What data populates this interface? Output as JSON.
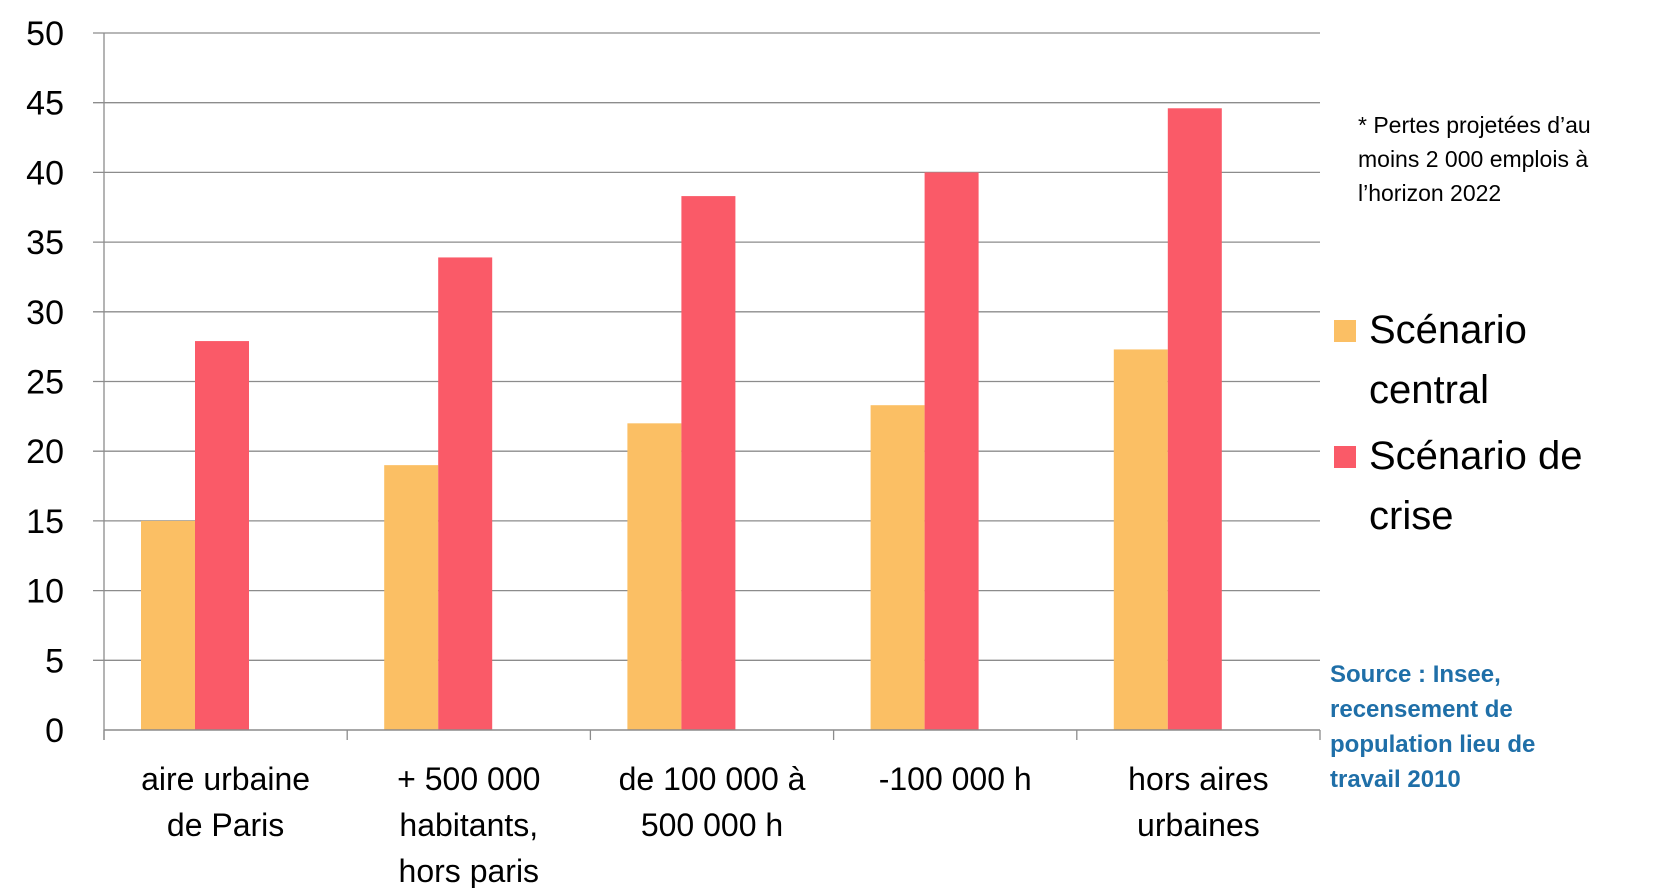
{
  "chart_data": {
    "type": "bar",
    "categories": [
      [
        "aire urbaine",
        "de Paris"
      ],
      [
        "+  500 000",
        "habitants,",
        "hors paris"
      ],
      [
        "de 100 000 à",
        "500 000 h"
      ],
      [
        "-100 000 h"
      ],
      [
        "hors aires",
        "urbaines"
      ]
    ],
    "series": [
      {
        "name": "Scénario central",
        "name_lines": [
          "Scénario",
          "central"
        ],
        "color": "#fbbf64",
        "values": [
          15,
          19,
          22,
          23.3,
          27.3
        ]
      },
      {
        "name": "Scénario de crise",
        "name_lines": [
          "Scénario de",
          "crise"
        ],
        "color": "#fa5a68",
        "values": [
          27.9,
          33.9,
          38.3,
          40,
          44.6
        ]
      }
    ],
    "ylim": [
      0,
      50
    ],
    "yticks": [
      "0",
      "5",
      "10",
      "15",
      "20",
      "25",
      "30",
      "35",
      "40",
      "45",
      "50"
    ],
    "grid": true,
    "legend_position": "right",
    "title": "",
    "xlabel": "",
    "ylabel": ""
  },
  "note": [
    "* Pertes projetées d’au",
    "moins 2 000 emplois à",
    "l’horizon 2022"
  ],
  "source": [
    "Source : Insee,",
    "recensement de",
    "population lieu de",
    "travail 2010"
  ]
}
